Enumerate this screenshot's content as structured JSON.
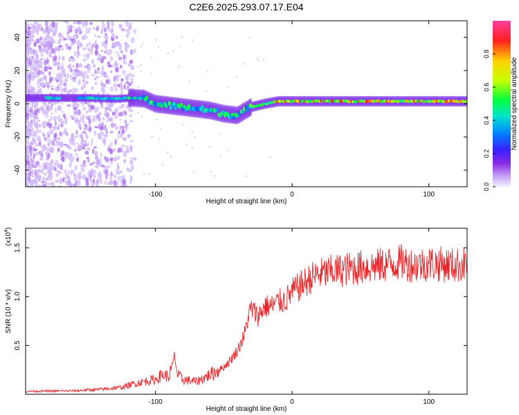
{
  "title": "C2E6.2025.293.07.17.E04",
  "colors": {
    "signal": "#e8262a",
    "spectral_ramp": [
      "#e0d8ff",
      "#c9a8f5",
      "#8a2be2",
      "#3b1fff",
      "#0080ff",
      "#00e0d0",
      "#00ff40",
      "#c8ff00",
      "#ffd000",
      "#ff2020",
      "#ff40a0"
    ]
  },
  "chart_data": [
    {
      "type": "heatmap",
      "xlabel": "Height of straight line (km)",
      "ylabel": "Frequency (Hz)",
      "xlim": [
        -195,
        128
      ],
      "ylim": [
        -50,
        50
      ],
      "xticks": [
        -100,
        0,
        100
      ],
      "xtick_labels": [
        "-100",
        "0",
        "100"
      ],
      "yticks": [
        -40,
        -20,
        0,
        20,
        40
      ],
      "ytick_labels": [
        "-40",
        "-20",
        "0",
        "20",
        "40"
      ],
      "colorbar": {
        "label": "Normalized spectral amplitude",
        "range": [
          0,
          1
        ],
        "ticks": [
          0.0,
          0.2,
          0.4,
          0.6,
          0.8
        ],
        "tick_labels": [
          "0.0",
          "0.2",
          "0.4",
          "0.6",
          "0.8"
        ]
      },
      "ridge": {
        "x": [
          -195,
          -150,
          -130,
          -115,
          -108,
          -100,
          -90,
          -80,
          -70,
          -60,
          -50,
          -40,
          -30,
          -20,
          -10,
          0,
          20,
          50,
          80,
          110,
          128
        ],
        "freq": [
          3.5,
          3.5,
          3.0,
          3.5,
          3.0,
          0.0,
          -1.0,
          -2.0,
          -3.0,
          -4.0,
          -6.0,
          -7.0,
          -2.0,
          0.0,
          1.5,
          1.5,
          1.5,
          1.5,
          1.5,
          1.5,
          1.5
        ]
      }
    },
    {
      "type": "line",
      "xlabel": "Height of straight line (km)",
      "ylabel": "SNR (10 * v/v)",
      "multiplier_label": "(x10",
      "multiplier_exp": "4",
      "xlim": [
        -195,
        128
      ],
      "ylim": [
        0,
        17000
      ],
      "xticks": [
        -100,
        0,
        100
      ],
      "xtick_labels": [
        "-100",
        "0",
        "100"
      ],
      "yticks": [
        5000,
        10000,
        15000
      ],
      "ytick_labels": [
        "0.5",
        "1.0",
        "1.5"
      ],
      "series": [
        {
          "name": "SNR",
          "x": [
            -195,
            -160,
            -140,
            -125,
            -112,
            -100,
            -95,
            -90,
            -88,
            -86,
            -84,
            -80,
            -70,
            -60,
            -50,
            -45,
            -40,
            -35,
            -32,
            -30,
            -25,
            -20,
            -15,
            -10,
            -5,
            0,
            5,
            10,
            15,
            20,
            30,
            40,
            50,
            60,
            70,
            80,
            90,
            100,
            110,
            120,
            128
          ],
          "values": [
            300,
            350,
            500,
            700,
            1200,
            1500,
            2000,
            1800,
            2800,
            4000,
            2000,
            1500,
            1300,
            2000,
            2800,
            3500,
            4500,
            6000,
            8000,
            8800,
            8000,
            9000,
            9000,
            9500,
            9600,
            10500,
            11000,
            11500,
            12000,
            12300,
            12600,
            12800,
            13000,
            13100,
            13300,
            13500,
            13200,
            13400,
            13300,
            13200,
            13400
          ]
        }
      ]
    }
  ]
}
